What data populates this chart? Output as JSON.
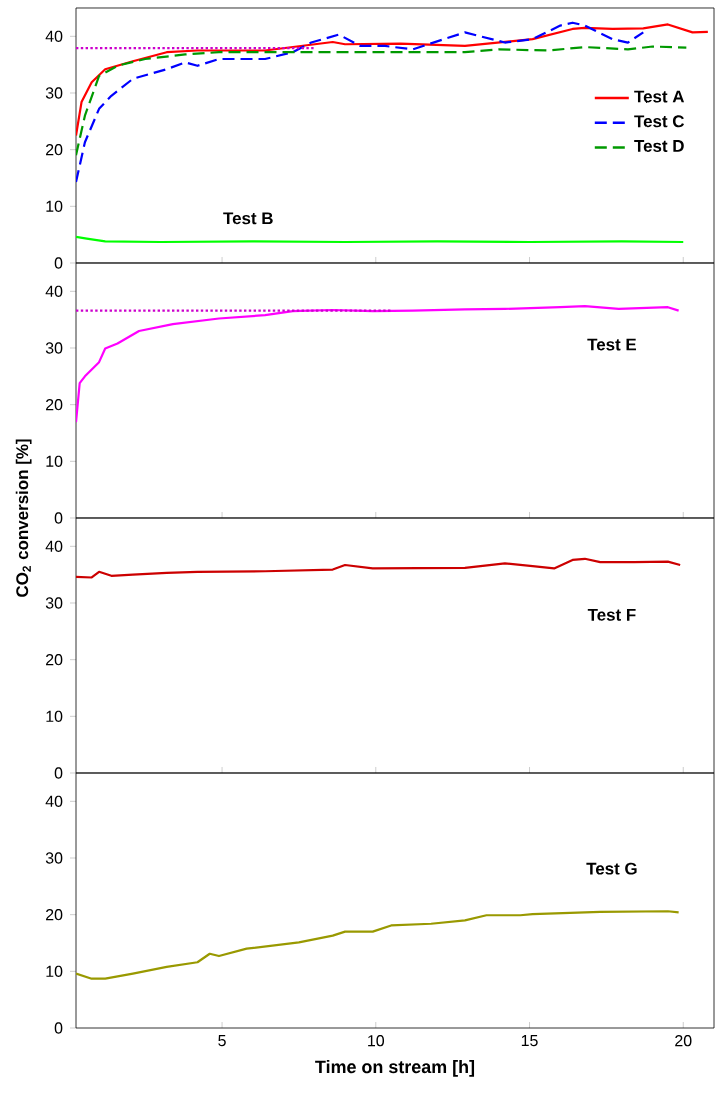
{
  "chart_data": [
    {
      "type": "line",
      "xlim": [
        0.25,
        21
      ],
      "xticks": [
        5,
        10,
        15,
        20
      ],
      "ylim": [
        0,
        45
      ],
      "yticks": [
        0,
        10,
        20,
        30,
        40
      ],
      "tick_labels": "y",
      "legend": "right",
      "annotations": [
        "Test B"
      ],
      "series": [
        {
          "name": "Test A",
          "color": "#ff0000",
          "line_style": "solid",
          "x": [
            0.25,
            0.43,
            0.76,
            1.2,
            2.1,
            3.2,
            4.2,
            6.4,
            8.6,
            9,
            10.8,
            12.9,
            15.1,
            16.4,
            16.8,
            17.7,
            18.7,
            19.5,
            20.3,
            20.8
          ],
          "values": [
            22.5,
            28.4,
            31.9,
            34.2,
            35.6,
            37.2,
            37.5,
            37.5,
            39,
            38.6,
            38.7,
            38.3,
            39.5,
            41.3,
            41.5,
            41.3,
            41.4,
            42.1,
            40.7,
            40.8
          ]
        },
        {
          "name": "Test C",
          "color": "#0000ff",
          "line_style": "dashed",
          "x": [
            0.25,
            0.54,
            1,
            1.4,
            2.1,
            3.2,
            3.8,
            4.2,
            4.9,
            6.4,
            7.3,
            7.9,
            8.8,
            9.5,
            10.3,
            11.2,
            12.9,
            14.2,
            15.1,
            16,
            16.4,
            16.8,
            17.7,
            18.2,
            18.7
          ],
          "values": [
            14.3,
            21.3,
            27.2,
            29.5,
            32.5,
            34.2,
            35.4,
            34.8,
            36,
            36,
            37.2,
            38.9,
            40.3,
            38.3,
            38.3,
            37.7,
            40.7,
            38.9,
            39.5,
            41.9,
            42.4,
            41.9,
            39.5,
            38.9,
            40.7
          ]
        },
        {
          "name": "Test D",
          "color": "#009900",
          "line_style": "dashed",
          "x": [
            0.25,
            0.54,
            1,
            1.6,
            2.5,
            3.8,
            4.9,
            7,
            10,
            12.9,
            14,
            15.6,
            16.8,
            18.2,
            19,
            20.1
          ],
          "values": [
            19,
            26,
            33,
            34.8,
            36,
            36.8,
            37.2,
            37.2,
            37.2,
            37.2,
            37.7,
            37.5,
            38.1,
            37.7,
            38.2,
            38
          ]
        },
        {
          "color": "#00ff00",
          "line_style": "solid",
          "x": [
            0.25,
            0.6,
            1.2,
            3,
            6,
            9,
            12,
            15,
            18,
            20
          ],
          "values": [
            4.6,
            4.3,
            3.8,
            3.7,
            3.8,
            3.7,
            3.8,
            3.7,
            3.8,
            3.7
          ]
        },
        {
          "color": "#cc00cc",
          "line_style": "dotted",
          "x": [
            0.25,
            8
          ],
          "values": [
            37.9,
            37.9
          ]
        }
      ]
    },
    {
      "type": "line",
      "xlim": [
        0.25,
        21
      ],
      "xticks": [
        5,
        10,
        15,
        20
      ],
      "ylim": [
        0,
        45
      ],
      "yticks": [
        0,
        10,
        20,
        30,
        40
      ],
      "tick_labels": "y",
      "ylabel": "CO$_{2}$ conversion [%]",
      "annotations": [
        "Test E"
      ],
      "series": [
        {
          "color": "#ff00ff",
          "line_style": "solid",
          "x": [
            0.25,
            0.37,
            0.54,
            1,
            1.2,
            1.6,
            2.3,
            3.4,
            4.9,
            6.4,
            7.3,
            8.6,
            9.9,
            11.2,
            12.9,
            14.2,
            16,
            16.8,
            17.9,
            19.5,
            19.85
          ],
          "values": [
            16.9,
            23.8,
            25,
            27.5,
            29.9,
            30.8,
            33,
            34.2,
            35.2,
            35.8,
            36.5,
            36.7,
            36.5,
            36.6,
            36.8,
            36.9,
            37.2,
            37.4,
            36.9,
            37.2,
            36.6
          ]
        },
        {
          "color": "#cc00cc",
          "line_style": "dotted",
          "x": [
            0.25,
            10.5
          ],
          "values": [
            36.6,
            36.6
          ]
        }
      ]
    },
    {
      "type": "line",
      "xlim": [
        0.25,
        21
      ],
      "xticks": [
        5,
        10,
        15,
        20
      ],
      "ylim": [
        0,
        45
      ],
      "yticks": [
        0,
        10,
        20,
        30,
        40
      ],
      "tick_labels": "y",
      "annotations": [
        "Test F"
      ],
      "series": [
        {
          "color": "#cc0000",
          "line_style": "solid",
          "x": [
            0.25,
            0.76,
            1,
            1.4,
            2.1,
            3.2,
            4.2,
            6.4,
            8.6,
            9,
            9.9,
            12.9,
            14.2,
            15.1,
            15.8,
            16.4,
            16.8,
            17.3,
            18.4,
            19.5,
            19.9
          ],
          "values": [
            34.6,
            34.5,
            35.5,
            34.8,
            35,
            35.3,
            35.5,
            35.6,
            35.9,
            36.7,
            36.1,
            36.2,
            37,
            36.5,
            36.1,
            37.6,
            37.8,
            37.2,
            37.2,
            37.3,
            36.7
          ]
        }
      ]
    },
    {
      "type": "line",
      "xlim": [
        0.25,
        21
      ],
      "xticks": [
        5,
        10,
        15,
        20
      ],
      "ylim": [
        0,
        45
      ],
      "yticks": [
        0,
        10,
        20,
        30,
        40
      ],
      "xlabel": "Time on stream [h]",
      "annotations": [
        "Test G"
      ],
      "series": [
        {
          "color": "#999900",
          "line_style": "solid",
          "x": [
            0.25,
            0.76,
            1.2,
            2.1,
            3.2,
            4.2,
            4.6,
            4.9,
            5.8,
            7.5,
            8.6,
            9,
            9.9,
            10.5,
            11.8,
            12.9,
            13.6,
            14.7,
            15.1,
            17.3,
            19.5,
            19.85
          ],
          "values": [
            9.6,
            8.7,
            8.7,
            9.6,
            10.8,
            11.6,
            13.1,
            12.7,
            14,
            15.1,
            16.3,
            17,
            17,
            18.1,
            18.4,
            19,
            19.9,
            19.9,
            20.1,
            20.5,
            20.6,
            20.4
          ]
        }
      ]
    }
  ]
}
